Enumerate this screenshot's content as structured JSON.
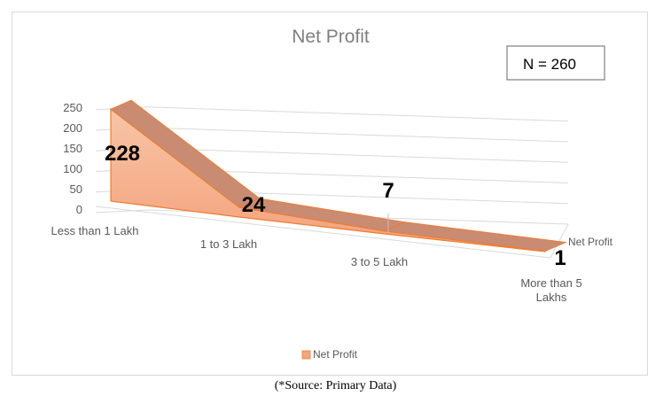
{
  "chart_data": {
    "type": "area",
    "title": "Net Profit",
    "categories": [
      "Less than 1 Lakh",
      "1 to 3 Lakh",
      "3 to 5 Lakh",
      "More than 5 Lakhs"
    ],
    "series": [
      {
        "name": "Net Profit",
        "values": [
          228,
          24,
          7,
          1
        ],
        "color": "#f4a582"
      }
    ],
    "data_labels": [
      "228",
      "24",
      "7",
      "1"
    ],
    "y_ticks": [
      "0",
      "50",
      "100",
      "150",
      "200",
      "250"
    ],
    "ylim": [
      0,
      250
    ],
    "grid": true,
    "legend": "bottom",
    "depth_axis_label": "Net Profit",
    "annotation": "N = 260"
  },
  "source_note": "(*Source: Primary Data)"
}
